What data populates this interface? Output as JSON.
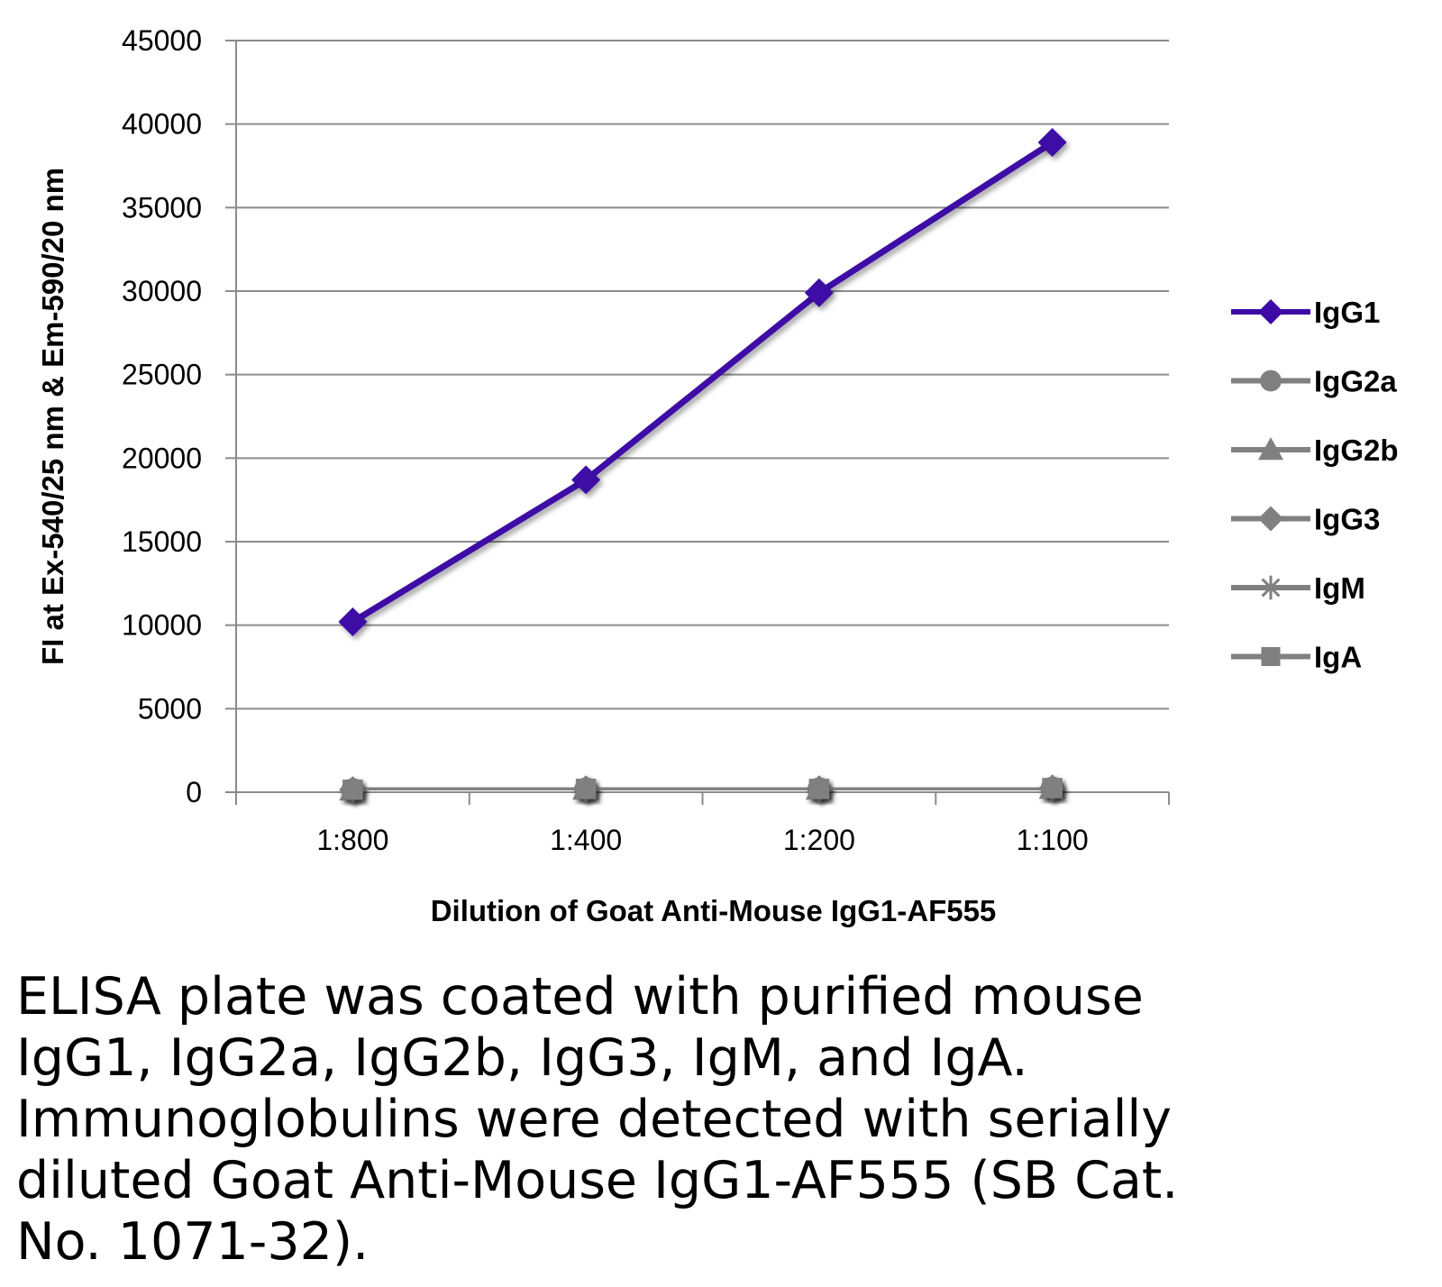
{
  "chart_data": {
    "type": "line",
    "title": "",
    "xlabel": "Dilution of Goat Anti-Mouse IgG1-AF555",
    "ylabel": "FI at Ex-540/25 nm & Em-590/20 nm",
    "categories": [
      "1:800",
      "1:400",
      "1:200",
      "1:100"
    ],
    "ylim": [
      0,
      45000
    ],
    "yticks": [
      0,
      5000,
      10000,
      15000,
      20000,
      25000,
      30000,
      35000,
      40000,
      45000
    ],
    "grid": "horizontal",
    "legend_position": "right",
    "series": [
      {
        "name": "IgG1",
        "values": [
          10200,
          18700,
          29900,
          38900
        ],
        "color": "#3d0aa6",
        "marker": "diamond"
      },
      {
        "name": "IgG2a",
        "values": [
          150,
          200,
          200,
          250
        ],
        "color": "#808080",
        "marker": "circle"
      },
      {
        "name": "IgG2b",
        "values": [
          150,
          200,
          200,
          250
        ],
        "color": "#808080",
        "marker": "triangle"
      },
      {
        "name": "IgG3",
        "values": [
          150,
          200,
          200,
          250
        ],
        "color": "#808080",
        "marker": "diamond"
      },
      {
        "name": "IgM",
        "values": [
          150,
          200,
          200,
          250
        ],
        "color": "#808080",
        "marker": "star"
      },
      {
        "name": "IgA",
        "values": [
          150,
          200,
          200,
          250
        ],
        "color": "#808080",
        "marker": "square"
      }
    ]
  },
  "caption": "ELISA plate was coated with purified mouse\nIgG1, IgG2a, IgG2b, IgG3, IgM, and IgA.\nImmunoglobulins were detected with serially\ndiluted Goat Anti-Mouse IgG1-AF555 (SB Cat.\nNo. 1071-32)."
}
